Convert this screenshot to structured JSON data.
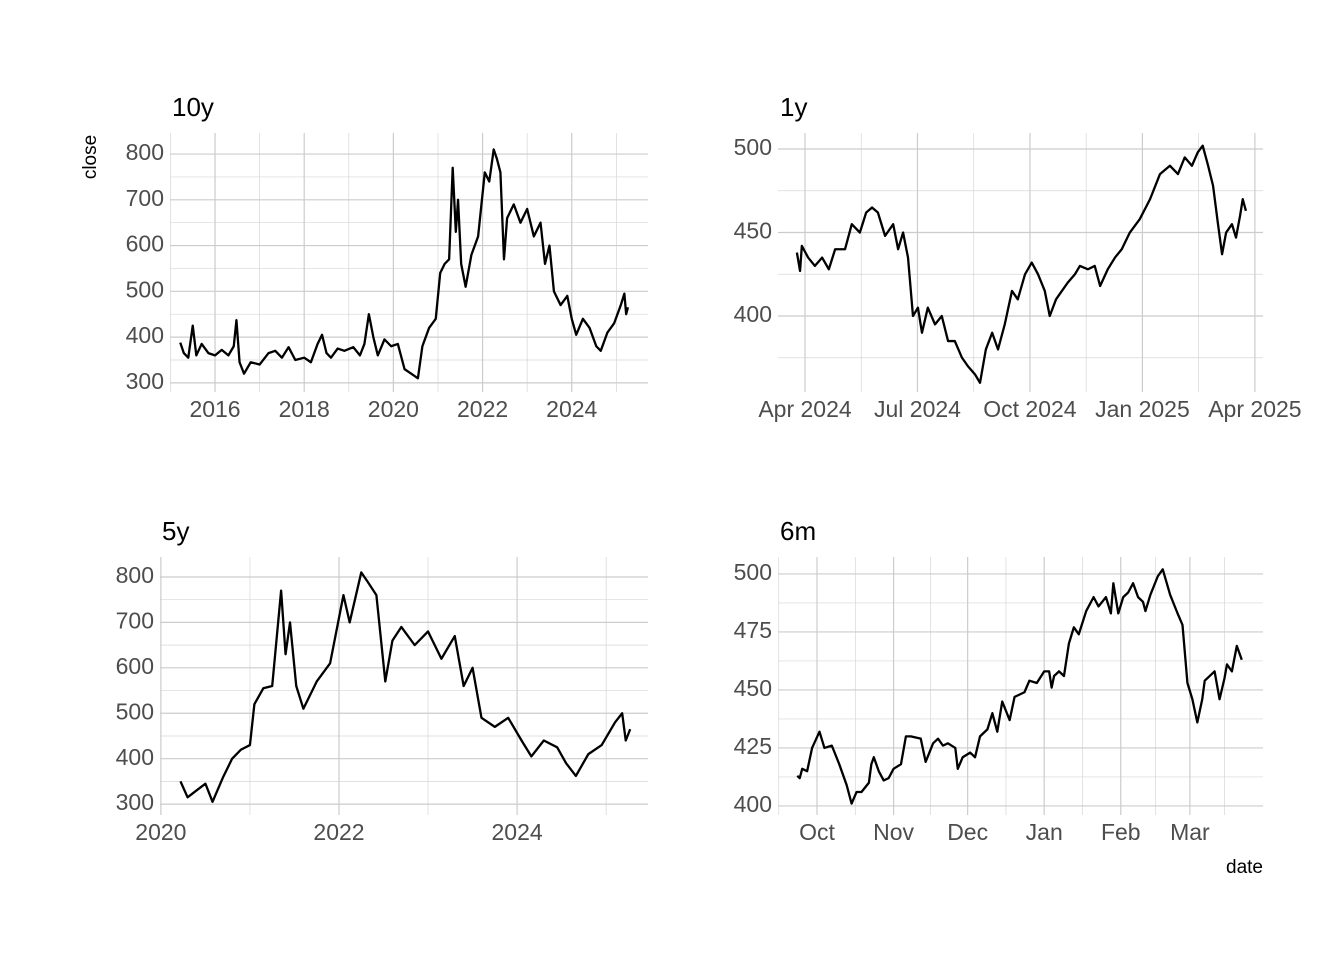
{
  "chart_data": [
    {
      "type": "line",
      "title": "10y",
      "y_label": "close",
      "color": "#000000",
      "grid": true,
      "minor_grid": true,
      "xlim": [
        2014.99,
        2025.71
      ],
      "xticks": [
        2016,
        2018,
        2020,
        2022,
        2024
      ],
      "ylim": [
        280,
        846
      ],
      "yticks": [
        300,
        400,
        500,
        600,
        700,
        800
      ],
      "x": [
        2015.22,
        2015.3,
        2015.4,
        2015.5,
        2015.58,
        2015.7,
        2015.85,
        2016.0,
        2016.15,
        2016.3,
        2016.42,
        2016.48,
        2016.55,
        2016.65,
        2016.8,
        2017.0,
        2017.2,
        2017.35,
        2017.5,
        2017.65,
        2017.8,
        2018.0,
        2018.15,
        2018.3,
        2018.4,
        2018.5,
        2018.6,
        2018.75,
        2018.9,
        2019.1,
        2019.25,
        2019.35,
        2019.45,
        2019.55,
        2019.65,
        2019.8,
        2019.95,
        2020.1,
        2020.25,
        2020.4,
        2020.55,
        2020.65,
        2020.8,
        2020.95,
        2021.05,
        2021.15,
        2021.25,
        2021.33,
        2021.4,
        2021.45,
        2021.52,
        2021.62,
        2021.75,
        2021.9,
        2022.05,
        2022.15,
        2022.25,
        2022.32,
        2022.4,
        2022.48,
        2022.55,
        2022.7,
        2022.85,
        2023.0,
        2023.15,
        2023.3,
        2023.4,
        2023.5,
        2023.6,
        2023.75,
        2023.9,
        2024.0,
        2024.1,
        2024.25,
        2024.4,
        2024.55,
        2024.65,
        2024.8,
        2024.95,
        2025.1,
        2025.18,
        2025.22,
        2025.26
      ],
      "values": [
        388,
        365,
        355,
        425,
        360,
        385,
        365,
        360,
        372,
        360,
        380,
        437,
        345,
        320,
        345,
        340,
        365,
        370,
        355,
        378,
        350,
        355,
        345,
        385,
        405,
        365,
        355,
        375,
        370,
        378,
        360,
        385,
        450,
        400,
        360,
        395,
        380,
        385,
        330,
        320,
        310,
        380,
        420,
        440,
        540,
        560,
        570,
        770,
        630,
        700,
        560,
        510,
        580,
        620,
        760,
        740,
        810,
        790,
        760,
        570,
        660,
        690,
        650,
        680,
        620,
        650,
        560,
        600,
        500,
        470,
        490,
        440,
        405,
        440,
        420,
        380,
        370,
        410,
        430,
        470,
        495,
        450,
        465
      ]
    },
    {
      "type": "line",
      "title": "1y",
      "color": "#000000",
      "grid": true,
      "minor_grid": true,
      "xlim": [
        2024.19,
        2025.268
      ],
      "xticks": [
        {
          "value": 2024.25,
          "label": "Apr 2024"
        },
        {
          "value": 2024.5,
          "label": "Jul 2024"
        },
        {
          "value": 2024.75,
          "label": "Oct 2024"
        },
        {
          "value": 2025.0,
          "label": "Jan 2025"
        },
        {
          "value": 2025.25,
          "label": "Apr 2025"
        }
      ],
      "ylim": [
        354.5,
        509.6
      ],
      "yticks": [
        400,
        450,
        500
      ],
      "x": [
        2024.232,
        2024.239,
        2024.243,
        2024.257,
        2024.272,
        2024.288,
        2024.303,
        2024.317,
        2024.339,
        2024.354,
        2024.372,
        2024.386,
        2024.399,
        2024.412,
        2024.428,
        2024.446,
        2024.457,
        2024.468,
        2024.479,
        2024.49,
        2024.501,
        2024.51,
        2024.523,
        2024.539,
        2024.554,
        2024.568,
        2024.583,
        2024.599,
        2024.612,
        2024.628,
        2024.639,
        2024.652,
        2024.666,
        2024.679,
        2024.694,
        2024.71,
        2024.723,
        2024.739,
        2024.754,
        2024.768,
        2024.783,
        2024.794,
        2024.808,
        2024.821,
        2024.834,
        2024.85,
        2024.861,
        2024.879,
        2024.894,
        2024.906,
        2024.923,
        2024.939,
        2024.954,
        2024.972,
        2024.994,
        2025.017,
        2025.039,
        2025.061,
        2025.079,
        2025.094,
        2025.11,
        2025.123,
        2025.134,
        2025.146,
        2025.157,
        2025.168,
        2025.177,
        2025.186,
        2025.199,
        2025.208,
        2025.217,
        2025.223,
        2025.23
      ],
      "values": [
        438,
        427,
        442,
        435,
        430,
        435,
        428,
        440,
        440,
        455,
        450,
        462,
        465,
        462,
        448,
        455,
        440,
        450,
        435,
        400,
        405,
        390,
        405,
        395,
        400,
        385,
        385,
        375,
        370,
        365,
        360,
        380,
        390,
        380,
        395,
        415,
        410,
        425,
        432,
        425,
        415,
        400,
        410,
        415,
        420,
        425,
        430,
        428,
        430,
        418,
        428,
        435,
        440,
        450,
        458,
        470,
        485,
        490,
        485,
        495,
        490,
        498,
        502,
        490,
        478,
        455,
        437,
        450,
        455,
        447,
        460,
        470,
        463
      ]
    },
    {
      "type": "line",
      "title": "5y",
      "color": "#000000",
      "grid": true,
      "minor_grid": true,
      "xlim": [
        2019.99,
        2025.47
      ],
      "xticks": [
        2020,
        2022,
        2024
      ],
      "ylim": [
        276,
        844
      ],
      "yticks": [
        300,
        400,
        500,
        600,
        700,
        800
      ],
      "x": [
        2020.22,
        2020.3,
        2020.4,
        2020.5,
        2020.58,
        2020.7,
        2020.8,
        2020.9,
        2021.0,
        2021.05,
        2021.15,
        2021.25,
        2021.35,
        2021.4,
        2021.45,
        2021.52,
        2021.6,
        2021.75,
        2021.9,
        2022.05,
        2022.12,
        2022.25,
        2022.32,
        2022.42,
        2022.52,
        2022.6,
        2022.7,
        2022.85,
        2023.0,
        2023.15,
        2023.3,
        2023.4,
        2023.5,
        2023.6,
        2023.75,
        2023.9,
        2024.05,
        2024.16,
        2024.3,
        2024.45,
        2024.55,
        2024.66,
        2024.8,
        2024.95,
        2025.1,
        2025.18,
        2025.22,
        2025.27
      ],
      "values": [
        350,
        315,
        330,
        345,
        305,
        360,
        400,
        420,
        430,
        520,
        555,
        560,
        770,
        630,
        700,
        560,
        510,
        570,
        610,
        760,
        700,
        810,
        790,
        760,
        570,
        660,
        690,
        650,
        680,
        620,
        670,
        560,
        600,
        490,
        470,
        490,
        440,
        405,
        440,
        425,
        390,
        362,
        410,
        430,
        480,
        500,
        440,
        465
      ]
    },
    {
      "type": "line",
      "title": "6m",
      "x_label": "date",
      "color": "#000000",
      "grid": true,
      "minor_grid": true,
      "xlim": [
        -15.8,
        180.6
      ],
      "xticks": [
        {
          "value": 0,
          "label": "Oct"
        },
        {
          "value": 31,
          "label": "Nov"
        },
        {
          "value": 61,
          "label": "Dec"
        },
        {
          "value": 92,
          "label": "Jan"
        },
        {
          "value": 123,
          "label": "Feb"
        },
        {
          "value": 151,
          "label": "Mar"
        }
      ],
      "ylim": [
        396.1,
        507.3
      ],
      "yticks": [
        400,
        425,
        450,
        475,
        500
      ],
      "x": [
        -8,
        -7,
        -6,
        -4,
        -2,
        1,
        3,
        6,
        9,
        12,
        14,
        16,
        18,
        21,
        22,
        23,
        25,
        27,
        29,
        31,
        34,
        36,
        38,
        42,
        44,
        47,
        49,
        51,
        53,
        56,
        57,
        59,
        62,
        64,
        66,
        69,
        71,
        73,
        75,
        78,
        80,
        84,
        86,
        89,
        92,
        94,
        95,
        96,
        98,
        100,
        102,
        104,
        106,
        109,
        112,
        114,
        117,
        119,
        120,
        122,
        124,
        126,
        128,
        130,
        132,
        133,
        135,
        138,
        140,
        143,
        146,
        148,
        150,
        152,
        154,
        156,
        157,
        160,
        161,
        163,
        165,
        166,
        168,
        170,
        172
      ],
      "values": [
        413,
        412,
        416,
        415,
        425,
        432,
        425,
        426,
        418,
        409,
        401,
        406,
        406,
        410,
        418,
        421,
        415,
        411,
        412,
        416,
        418,
        430,
        430,
        429,
        419,
        427,
        429,
        426,
        427,
        425,
        416,
        421,
        423,
        421,
        430,
        433,
        440,
        432,
        445,
        437,
        447,
        449,
        454,
        453,
        458,
        458,
        451,
        456,
        458,
        456,
        470,
        477,
        474,
        484,
        490,
        486,
        490,
        483,
        496,
        483,
        490,
        492,
        496,
        490,
        488,
        484,
        491,
        499,
        502,
        491,
        483,
        478,
        453,
        446,
        436,
        446,
        454,
        457,
        458,
        446,
        455,
        461,
        458,
        469,
        463
      ]
    }
  ]
}
